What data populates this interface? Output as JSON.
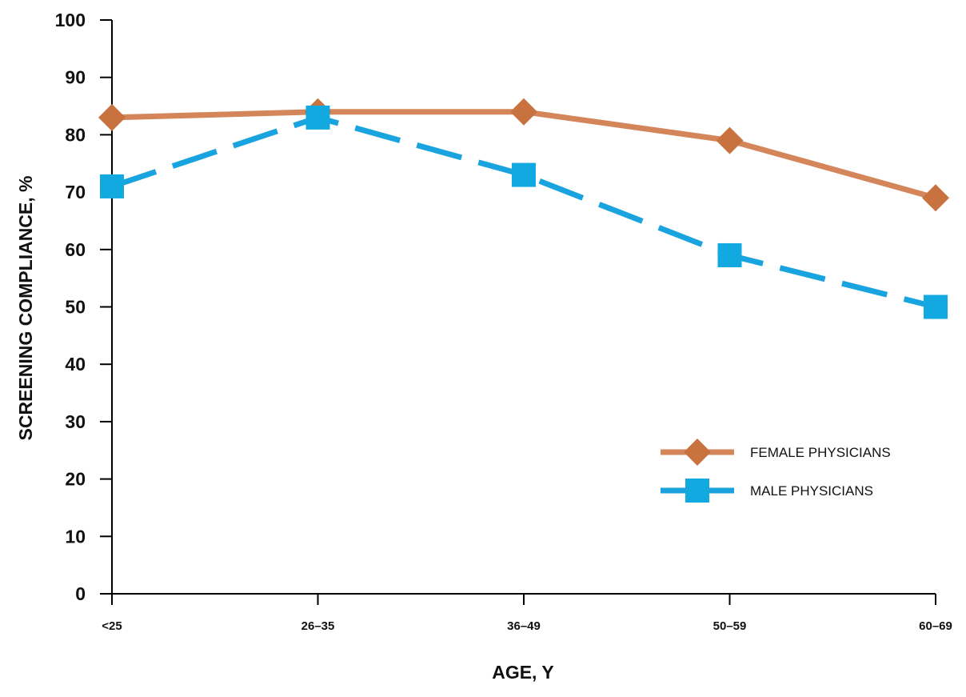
{
  "chart_data": {
    "type": "line",
    "categories": [
      "<25",
      "26–35",
      "36–49",
      "50–59",
      "60–69"
    ],
    "xlabel": "AGE, Y",
    "ylabel": "SCREENING COMPLIANCE, %",
    "ylim": [
      0,
      100
    ],
    "yticks": [
      0,
      10,
      20,
      30,
      40,
      50,
      60,
      70,
      80,
      90,
      100
    ],
    "grid": false,
    "legend_position": "right",
    "series": [
      {
        "name": "FEMALE PHYSICIANS",
        "values": [
          83,
          84,
          84,
          79,
          69
        ],
        "color": "#d4855a",
        "marker_color": "#c8733f",
        "marker": "diamond",
        "line_style": "solid"
      },
      {
        "name": "MALE  PHYSICIANS",
        "values": [
          71,
          83,
          73,
          59,
          50
        ],
        "color": "#1aa4df",
        "marker_color": "#12a8e0",
        "marker": "square",
        "line_style": "dashed"
      }
    ]
  }
}
